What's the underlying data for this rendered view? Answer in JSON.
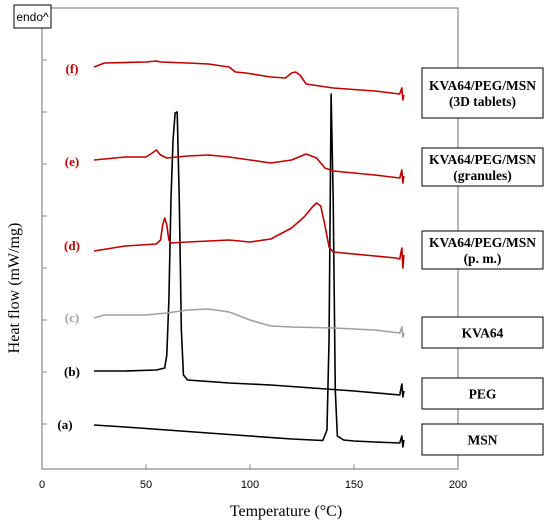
{
  "chart_data": {
    "type": "line",
    "xlabel": "Temperature (°C)",
    "ylabel": "Heat flow (mW/mg)",
    "xlim": [
      0,
      200
    ],
    "x_ticks": [
      "0",
      "50",
      "100",
      "150",
      "200"
    ],
    "y_ticks_labeled": false,
    "grid": false,
    "endo_label": "endo^",
    "colors": {
      "red": "#c00000",
      "black": "#000000",
      "gray": "#a0a0a0"
    },
    "series": [
      {
        "id": "a",
        "curve_label": "(a)",
        "name": "MSN",
        "legend_lines": [
          "MSN"
        ],
        "color": "#000000",
        "points": [
          [
            25,
            425
          ],
          [
            40,
            427
          ],
          [
            60,
            430
          ],
          [
            80,
            433
          ],
          [
            100,
            436
          ],
          [
            120,
            439
          ],
          [
            130,
            440
          ],
          [
            135,
            440.5
          ],
          [
            137,
            430
          ],
          [
            138,
            340
          ],
          [
            139,
            94
          ],
          [
            140,
            200
          ],
          [
            141,
            390
          ],
          [
            142,
            436
          ],
          [
            145,
            440
          ],
          [
            150,
            441
          ],
          [
            160,
            442
          ],
          [
            172,
            443
          ],
          [
            173,
            436
          ],
          [
            173.5,
            447
          ],
          [
            174,
            440
          ]
        ]
      },
      {
        "id": "b",
        "curve_label": "(b)",
        "name": "PEG",
        "legend_lines": [
          "PEG"
        ],
        "color": "#000000",
        "points": [
          [
            25,
            371
          ],
          [
            40,
            371
          ],
          [
            55,
            370
          ],
          [
            59,
            368
          ],
          [
            60,
            355
          ],
          [
            61,
            300
          ],
          [
            62,
            200
          ],
          [
            63,
            140
          ],
          [
            64,
            113
          ],
          [
            65,
            112
          ],
          [
            66,
            200
          ],
          [
            67,
            330
          ],
          [
            68,
            375
          ],
          [
            70,
            380
          ],
          [
            90,
            383
          ],
          [
            110,
            385
          ],
          [
            130,
            388
          ],
          [
            150,
            391
          ],
          [
            172,
            395
          ],
          [
            173,
            384
          ],
          [
            173.5,
            397
          ],
          [
            174,
            391
          ]
        ]
      },
      {
        "id": "c",
        "curve_label": "(c)",
        "name": "KVA64",
        "legend_lines": [
          "KVA64"
        ],
        "color": "#a0a0a0",
        "points": [
          [
            25,
            318
          ],
          [
            30,
            315
          ],
          [
            40,
            315
          ],
          [
            50,
            315
          ],
          [
            60,
            313
          ],
          [
            70,
            310
          ],
          [
            80,
            309
          ],
          [
            90,
            312
          ],
          [
            100,
            320
          ],
          [
            110,
            326
          ],
          [
            120,
            327
          ],
          [
            140,
            328
          ],
          [
            160,
            330
          ],
          [
            172,
            333
          ],
          [
            173,
            327
          ],
          [
            173.5,
            337
          ],
          [
            174,
            333
          ]
        ]
      },
      {
        "id": "d",
        "curve_label": "(d)",
        "name": "KVA64/PEG/MSN (p. m.)",
        "legend_lines": [
          "KVA64/PEG/MSN",
          "(p. m.)"
        ],
        "color": "#c00000",
        "points": [
          [
            25,
            251
          ],
          [
            40,
            246
          ],
          [
            55,
            244
          ],
          [
            57,
            240
          ],
          [
            58,
            225
          ],
          [
            59,
            218
          ],
          [
            60,
            225
          ],
          [
            61,
            240
          ],
          [
            62,
            243
          ],
          [
            70,
            242
          ],
          [
            90,
            240
          ],
          [
            100,
            242
          ],
          [
            110,
            239
          ],
          [
            120,
            228
          ],
          [
            126,
            217
          ],
          [
            130,
            207
          ],
          [
            132,
            203
          ],
          [
            134,
            206
          ],
          [
            136,
            225
          ],
          [
            138,
            247
          ],
          [
            140,
            252
          ],
          [
            160,
            256
          ],
          [
            170,
            258
          ],
          [
            172,
            259
          ],
          [
            173,
            248
          ],
          [
            173.5,
            268
          ],
          [
            174,
            255
          ]
        ]
      },
      {
        "id": "e",
        "curve_label": "(e)",
        "name": "KVA64/PEG/MSN (granules)",
        "legend_lines": [
          "KVA64/PEG/MSN",
          "(granules)"
        ],
        "color": "#c00000",
        "points": [
          [
            25,
            160
          ],
          [
            40,
            157
          ],
          [
            50,
            157
          ],
          [
            53,
            153
          ],
          [
            55,
            150
          ],
          [
            57,
            155
          ],
          [
            60,
            158
          ],
          [
            70,
            156
          ],
          [
            80,
            155
          ],
          [
            90,
            157
          ],
          [
            100,
            160
          ],
          [
            110,
            163
          ],
          [
            120,
            160
          ],
          [
            127,
            154
          ],
          [
            132,
            158
          ],
          [
            136,
            168
          ],
          [
            140,
            171
          ],
          [
            160,
            175
          ],
          [
            172,
            178
          ],
          [
            173,
            170
          ],
          [
            173.5,
            183
          ],
          [
            174,
            176
          ]
        ]
      },
      {
        "id": "f",
        "curve_label": "(f)",
        "name": "KVA64/PEG/MSN (3D tablets)",
        "legend_lines": [
          "KVA64/PEG/MSN",
          "(3D tablets)"
        ],
        "color": "#c00000",
        "points": [
          [
            25,
            67
          ],
          [
            30,
            63
          ],
          [
            50,
            62
          ],
          [
            55,
            61
          ],
          [
            57,
            62
          ],
          [
            70,
            63
          ],
          [
            80,
            64
          ],
          [
            90,
            67
          ],
          [
            93,
            72
          ],
          [
            98,
            73
          ],
          [
            110,
            77
          ],
          [
            117,
            78
          ],
          [
            120,
            73
          ],
          [
            122,
            72
          ],
          [
            124,
            75
          ],
          [
            127,
            84
          ],
          [
            140,
            88
          ],
          [
            160,
            91
          ],
          [
            172,
            94
          ],
          [
            173,
            88
          ],
          [
            173.5,
            100
          ],
          [
            174,
            95
          ]
        ]
      }
    ]
  }
}
